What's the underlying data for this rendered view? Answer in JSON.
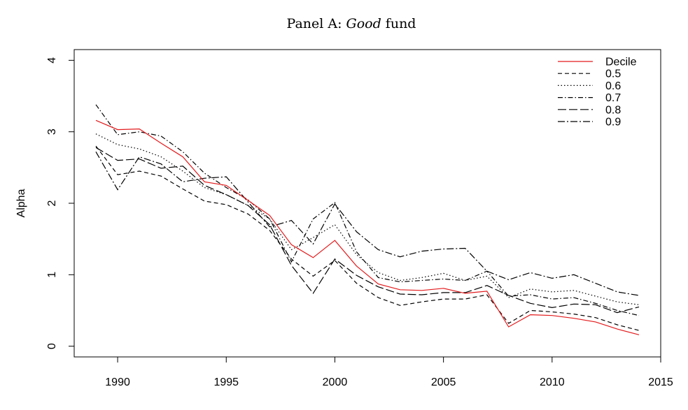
{
  "chart_data": {
    "type": "line",
    "title_prefix": "Panel A: ",
    "title_italic": "Good",
    "title_suffix": " fund",
    "xlabel": "",
    "ylabel": "Alpha",
    "xlim": [
      1988,
      2015
    ],
    "ylim": [
      -0.15,
      4.15
    ],
    "x_ticks": [
      1990,
      1995,
      2000,
      2005,
      2010,
      2015
    ],
    "y_ticks": [
      0,
      1,
      2,
      3,
      4
    ],
    "grid": false,
    "legend_position": "top-right",
    "x": [
      1989,
      1990,
      1991,
      1992,
      1993,
      1994,
      1995,
      1996,
      1997,
      1998,
      1999,
      2000,
      2001,
      2002,
      2003,
      2004,
      2005,
      2006,
      2007,
      2008,
      2009,
      2010,
      2011,
      2012,
      2013,
      2014
    ],
    "series": [
      {
        "name": "Decile",
        "color": "#e31a1c",
        "dash": "",
        "values": [
          3.16,
          3.03,
          3.04,
          2.84,
          2.65,
          2.3,
          2.25,
          2.04,
          1.83,
          1.42,
          1.24,
          1.48,
          1.12,
          0.87,
          0.79,
          0.78,
          0.81,
          0.74,
          0.77,
          0.27,
          0.44,
          0.43,
          0.39,
          0.34,
          0.24,
          0.16
        ]
      },
      {
        "name": "0.5",
        "color": "#000000",
        "dash": "6,4",
        "values": [
          2.8,
          2.4,
          2.45,
          2.38,
          2.2,
          2.03,
          1.98,
          1.85,
          1.62,
          1.22,
          0.98,
          1.2,
          0.88,
          0.68,
          0.57,
          0.62,
          0.66,
          0.66,
          0.72,
          0.32,
          0.5,
          0.48,
          0.45,
          0.4,
          0.3,
          0.22
        ]
      },
      {
        "name": "0.6",
        "color": "#000000",
        "dash": "1.5,3",
        "values": [
          2.97,
          2.82,
          2.76,
          2.65,
          2.45,
          2.22,
          2.12,
          1.97,
          1.78,
          1.35,
          1.52,
          1.7,
          1.28,
          1.03,
          0.92,
          0.96,
          1.02,
          0.92,
          0.98,
          0.68,
          0.8,
          0.76,
          0.78,
          0.7,
          0.62,
          0.58
        ]
      },
      {
        "name": "0.7",
        "color": "#000000",
        "dash": "7,3,1.5,3",
        "values": [
          3.38,
          2.96,
          3.0,
          2.94,
          2.72,
          2.42,
          2.22,
          2.05,
          1.78,
          1.18,
          1.78,
          2.01,
          1.32,
          0.96,
          0.9,
          0.92,
          0.94,
          0.92,
          1.05,
          0.7,
          0.72,
          0.66,
          0.68,
          0.6,
          0.5,
          0.43
        ]
      },
      {
        "name": "0.8",
        "color": "#000000",
        "dash": "12,4",
        "values": [
          2.78,
          2.6,
          2.62,
          2.49,
          2.52,
          2.25,
          2.12,
          1.97,
          1.7,
          1.13,
          0.74,
          1.22,
          0.99,
          0.83,
          0.73,
          0.72,
          0.75,
          0.75,
          0.85,
          0.71,
          0.6,
          0.54,
          0.59,
          0.58,
          0.47,
          0.55
        ]
      },
      {
        "name": "0.9",
        "color": "#000000",
        "dash": "10,3,2,3",
        "values": [
          2.72,
          2.19,
          2.65,
          2.55,
          2.3,
          2.35,
          2.37,
          2.02,
          1.67,
          1.76,
          1.43,
          1.99,
          1.6,
          1.35,
          1.25,
          1.33,
          1.36,
          1.37,
          1.05,
          0.93,
          1.03,
          0.95,
          1.0,
          0.88,
          0.76,
          0.71
        ]
      }
    ]
  }
}
